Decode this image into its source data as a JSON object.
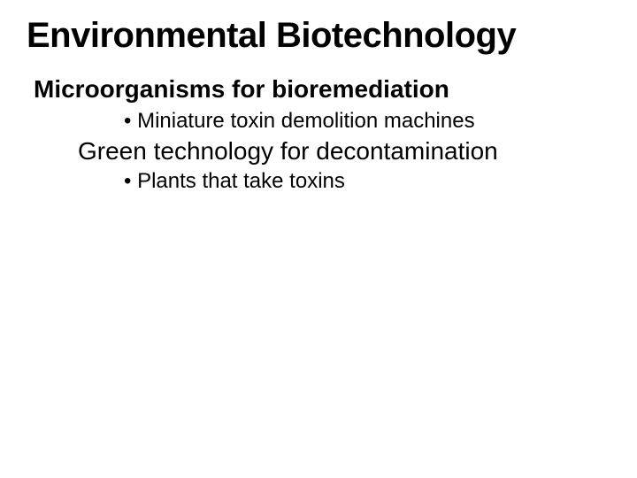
{
  "slide": {
    "title": "Environmental Biotechnology",
    "section1": {
      "heading": "Microorganisms for bioremediation",
      "bullet": "• Miniature toxin demolition machines"
    },
    "section2": {
      "heading": "Green technology for decontamination",
      "bullet": "• Plants that take toxins"
    }
  }
}
